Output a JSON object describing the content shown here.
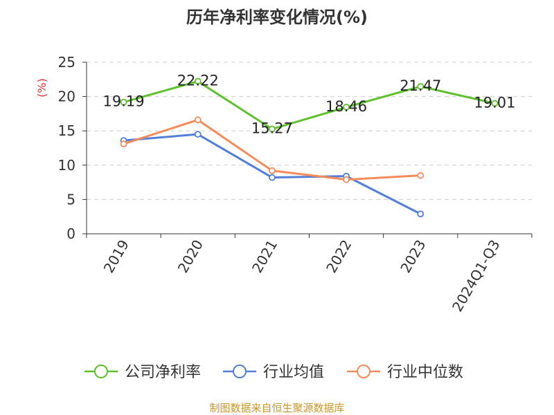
{
  "colors": {
    "company": "#5cc12b",
    "industry_avg": "#4f7fd9",
    "industry_median": "#f68b5a",
    "grid": "#cccccc",
    "axis": "#333333"
  },
  "source_note": "制图数据来自恒生聚源数据库",
  "chart_data": {
    "type": "line",
    "title": "历年净利率变化情况(%)",
    "ylabel": "(%)",
    "xlabel": "",
    "ylim": [
      0,
      25
    ],
    "yticks": [
      0,
      5,
      10,
      15,
      20,
      25
    ],
    "grid": "horizontal dashed",
    "legend_position": "bottom",
    "categories": [
      "2019",
      "2020",
      "2021",
      "2022",
      "2023",
      "2024Q1-Q3"
    ],
    "series": [
      {
        "name": "公司净利率",
        "color_key": "company",
        "values": [
          19.19,
          22.22,
          15.27,
          18.46,
          21.47,
          19.01
        ],
        "show_labels": true
      },
      {
        "name": "行业均值",
        "color_key": "industry_avg",
        "values": [
          13.6,
          14.5,
          8.2,
          8.4,
          2.9,
          null
        ],
        "show_labels": false
      },
      {
        "name": "行业中位数",
        "color_key": "industry_median",
        "values": [
          13.1,
          16.6,
          9.2,
          7.9,
          8.5,
          null
        ],
        "show_labels": false
      }
    ]
  }
}
